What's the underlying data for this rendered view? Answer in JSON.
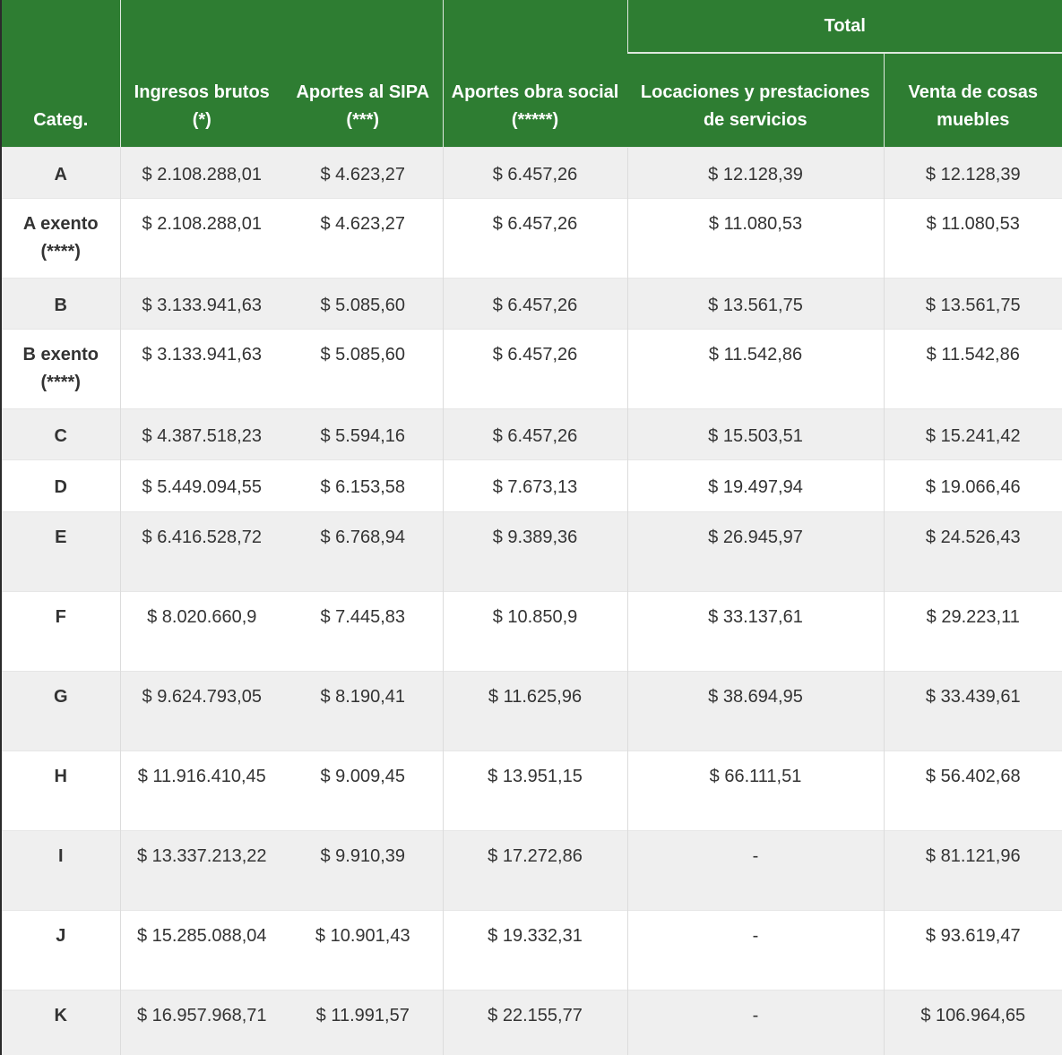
{
  "table": {
    "header": {
      "categ": "Categ.",
      "ingresos": "Ingresos brutos (*)",
      "sipa": "Aportes al SIPA (***)",
      "obra": "Aportes obra social (*****)",
      "total": "Total",
      "locaciones": "Locaciones y prestaciones de servicios",
      "venta": "Venta de cosas muebles"
    },
    "rows": [
      {
        "categ": "A",
        "ingresos": "$ 2.108.288,01",
        "sipa": "$ 4.623,27",
        "obra": "$ 6.457,26",
        "locaciones": "$ 12.128,39",
        "venta": "$ 12.128,39"
      },
      {
        "categ": "A exento (****)",
        "ingresos": "$ 2.108.288,01",
        "sipa": "$ 4.623,27",
        "obra": "$ 6.457,26",
        "locaciones": "$ 11.080,53",
        "venta": "$ 11.080,53"
      },
      {
        "categ": "B",
        "ingresos": "$ 3.133.941,63",
        "sipa": "$ 5.085,60",
        "obra": "$ 6.457,26",
        "locaciones": "$ 13.561,75",
        "venta": "$ 13.561,75"
      },
      {
        "categ": "B exento (****)",
        "ingresos": "$ 3.133.941,63",
        "sipa": "$ 5.085,60",
        "obra": "$ 6.457,26",
        "locaciones": "$ 11.542,86",
        "venta": "$ 11.542,86"
      },
      {
        "categ": "C",
        "ingresos": "$ 4.387.518,23",
        "sipa": "$ 5.594,16",
        "obra": "$ 6.457,26",
        "locaciones": "$ 15.503,51",
        "venta": "$ 15.241,42"
      },
      {
        "categ": "D",
        "ingresos": "$ 5.449.094,55",
        "sipa": "$ 6.153,58",
        "obra": "$ 7.673,13",
        "locaciones": "$ 19.497,94",
        "venta": "$ 19.066,46"
      },
      {
        "categ": "E",
        "ingresos": "$ 6.416.528,72",
        "sipa": "$ 6.768,94",
        "obra": "$ 9.389,36",
        "locaciones": "$ 26.945,97",
        "venta": "$ 24.526,43"
      },
      {
        "categ": "F",
        "ingresos": "$ 8.020.660,9",
        "sipa": "$ 7.445,83",
        "obra": "$ 10.850,9",
        "locaciones": "$ 33.137,61",
        "venta": "$ 29.223,11"
      },
      {
        "categ": "G",
        "ingresos": "$ 9.624.793,05",
        "sipa": "$ 8.190,41",
        "obra": "$ 11.625,96",
        "locaciones": "$ 38.694,95",
        "venta": "$ 33.439,61"
      },
      {
        "categ": "H",
        "ingresos": "$ 11.916.410,45",
        "sipa": "$ 9.009,45",
        "obra": "$ 13.951,15",
        "locaciones": "$ 66.111,51",
        "venta": "$ 56.402,68"
      },
      {
        "categ": "I",
        "ingresos": "$ 13.337.213,22",
        "sipa": "$ 9.910,39",
        "obra": "$ 17.272,86",
        "locaciones": "-",
        "venta": "$ 81.121,96"
      },
      {
        "categ": "J",
        "ingresos": "$ 15.285.088,04",
        "sipa": "$ 10.901,43",
        "obra": "$ 19.332,31",
        "locaciones": "-",
        "venta": "$ 93.619,47"
      },
      {
        "categ": "K",
        "ingresos": "$ 16.957.968,71",
        "sipa": "$ 11.991,57",
        "obra": "$ 22.155,77",
        "locaciones": "-",
        "venta": "$ 106.964,65"
      }
    ]
  },
  "colors": {
    "header_green": "#2e7d32",
    "row_shade": "#efefef",
    "row_plain": "#ffffff"
  }
}
